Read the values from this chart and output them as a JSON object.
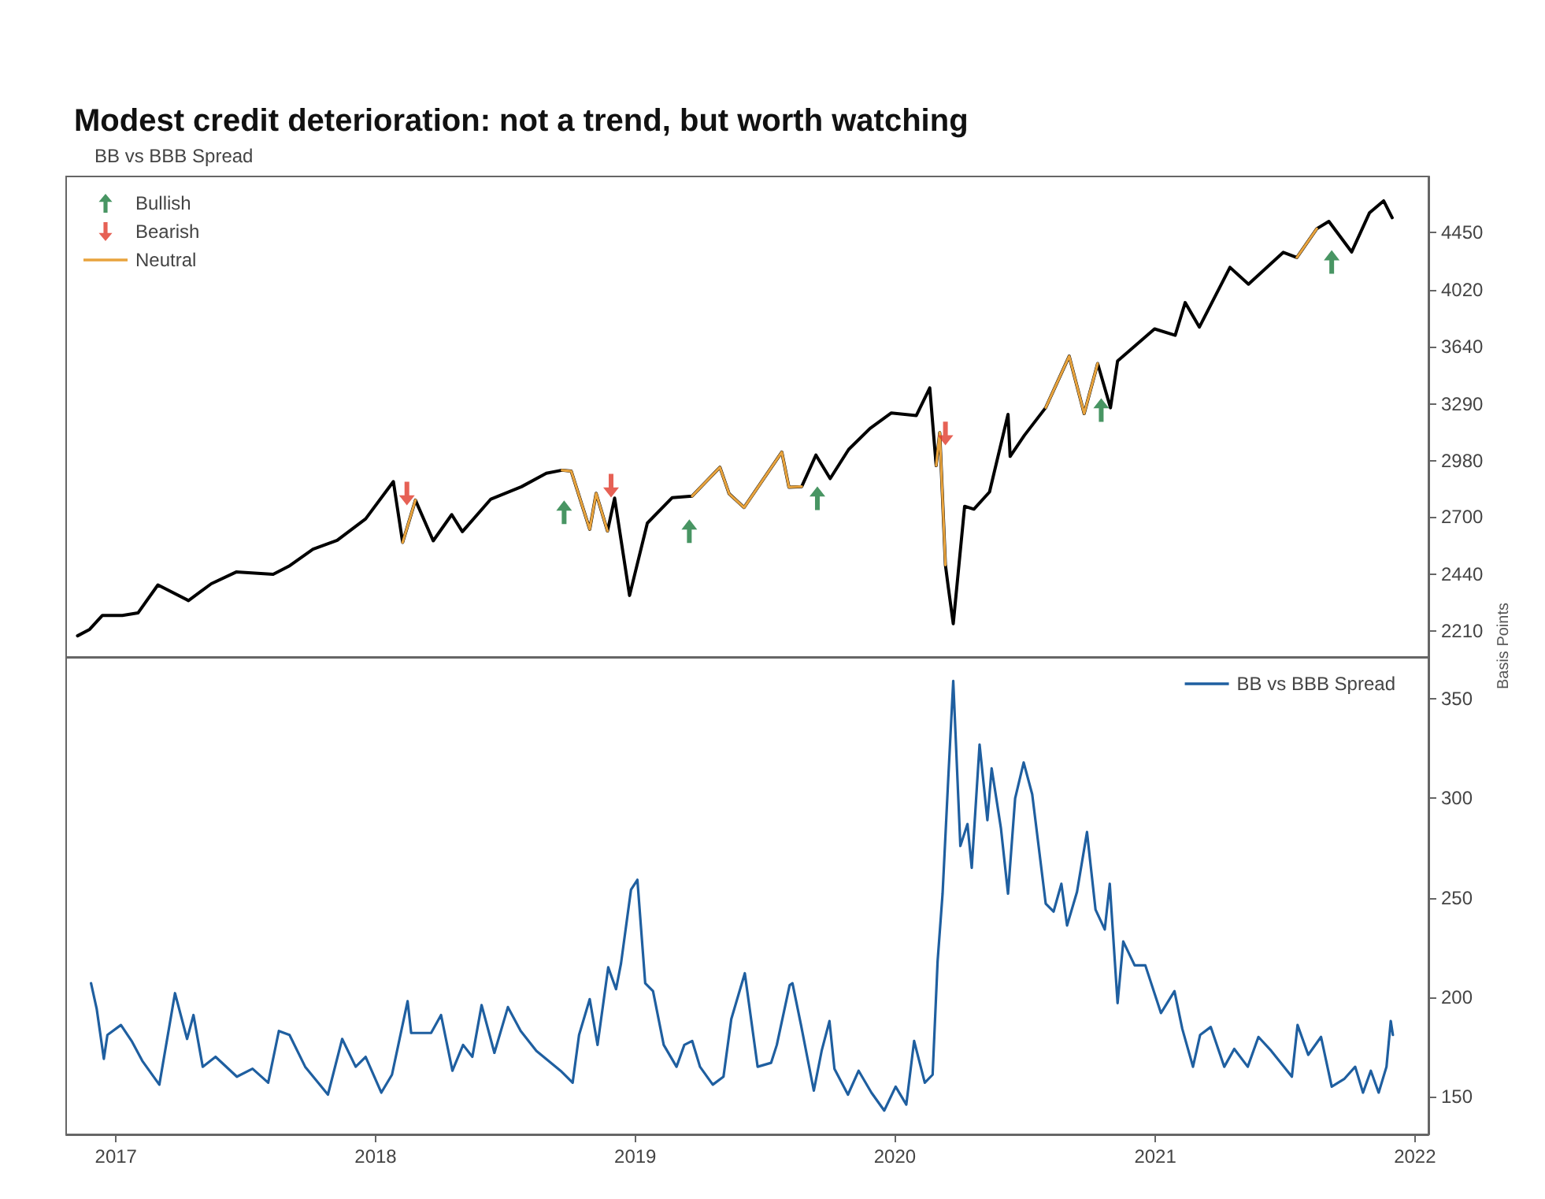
{
  "chart_data": [
    {
      "type": "line",
      "title": "Modest credit deterioration: not a trend, but worth watching",
      "subtitle": "BB vs BBB Spread",
      "x": [
        "2016-11-08",
        "2016-11-25",
        "2016-12-13",
        "2017-01-10",
        "2017-02-01",
        "2017-03-01",
        "2017-04-13",
        "2017-05-15",
        "2017-06-19",
        "2017-08-10",
        "2017-09-01",
        "2017-10-05",
        "2017-11-08",
        "2017-12-18",
        "2018-01-26",
        "2018-02-08",
        "2018-02-26",
        "2018-03-23",
        "2018-04-18",
        "2018-05-03",
        "2018-06-12",
        "2018-07-25",
        "2018-08-29",
        "2018-09-20",
        "2018-10-03",
        "2018-10-29",
        "2018-11-07",
        "2018-11-23",
        "2018-12-03",
        "2018-12-24",
        "2019-01-18",
        "2019-02-22",
        "2019-03-22",
        "2019-04-30",
        "2019-05-13",
        "2019-06-03",
        "2019-07-26",
        "2019-08-05",
        "2019-08-23",
        "2019-09-12",
        "2019-10-02",
        "2019-10-28",
        "2019-11-27",
        "2019-12-27",
        "2020-01-31",
        "2020-02-19",
        "2020-02-28",
        "2020-03-04",
        "2020-03-12",
        "2020-03-16",
        "2020-03-23",
        "2020-04-08",
        "2020-04-21",
        "2020-05-13",
        "2020-06-08",
        "2020-06-11",
        "2020-07-01",
        "2020-07-31",
        "2020-09-02",
        "2020-09-23",
        "2020-10-12",
        "2020-10-30",
        "2020-11-09",
        "2020-12-31",
        "2021-01-29",
        "2021-02-12",
        "2021-03-04",
        "2021-04-16",
        "2021-05-12",
        "2021-06-30",
        "2021-07-19",
        "2021-08-16",
        "2021-09-02",
        "2021-10-04",
        "2021-10-29",
        "2021-11-18",
        "2021-11-30"
      ],
      "series": [
        {
          "type": "line",
          "color": "#000000",
          "marker": "none",
          "values": [
            2190,
            2215,
            2270,
            2270,
            2280,
            2395,
            2330,
            2400,
            2450,
            2440,
            2475,
            2550,
            2590,
            2690,
            2872,
            2581,
            2780,
            2588,
            2710,
            2630,
            2785,
            2846,
            2914,
            2930,
            2925,
            2641,
            2813,
            2633,
            2790,
            2351,
            2670,
            2792,
            2800,
            2945,
            2811,
            2744,
            3025,
            2844,
            2847,
            3009,
            2887,
            3039,
            3153,
            3240,
            3225,
            3386,
            2954,
            3130,
            2480,
            2386,
            2237,
            2750,
            2736,
            2820,
            3232,
            3002,
            3115,
            3271,
            3580,
            3237,
            3534,
            3270,
            3550,
            3756,
            3714,
            3934,
            3768,
            4185,
            4063,
            4297,
            4258,
            4479,
            4537,
            4300,
            4605,
            4704,
            4567
          ]
        },
        {
          "type": "scatter",
          "name": "Bullish",
          "color": "#1a7a3c",
          "x": [
            "2018-09-23",
            "2019-03-18",
            "2019-09-14",
            "2020-10-17",
            "2021-09-06"
          ],
          "values": [
            2721,
            2632,
            2789,
            3257,
            4225
          ]
        },
        {
          "type": "scatter",
          "name": "Bearish",
          "color": "#e0392b",
          "x": [
            "2018-02-14",
            "2018-11-28",
            "2020-03-12"
          ],
          "values": [
            2812,
            2851,
            3125
          ]
        },
        {
          "type": "line",
          "name": "Neutral",
          "color": "#e8a33d",
          "marker": "none",
          "values": [
            null,
            null,
            null,
            null,
            null,
            null,
            null,
            null,
            null,
            null,
            null,
            null,
            null,
            null,
            null,
            2581,
            2780,
            null,
            null,
            null,
            null,
            null,
            null,
            2930,
            2925,
            2641,
            2813,
            2633,
            null,
            null,
            null,
            null,
            2800,
            2945,
            2811,
            2744,
            3025,
            2844,
            2847,
            null,
            null,
            null,
            null,
            null,
            null,
            null,
            2954,
            3130,
            2480,
            null,
            null,
            null,
            null,
            null,
            null,
            null,
            null,
            3271,
            3580,
            3237,
            3534,
            null,
            null,
            null,
            null,
            null,
            null,
            null,
            null,
            null,
            4258,
            4479,
            null,
            null,
            null,
            null,
            null
          ]
        }
      ],
      "log": "y",
      "xlim": [
        "2016-10-23",
        "2022-01-20"
      ],
      "xticks": [
        "2017",
        "2018",
        "2019",
        "2020",
        "2021",
        "2022"
      ],
      "ylim": [
        2110,
        4910
      ],
      "yticks": [
        2210,
        2440,
        2700,
        2980,
        3290,
        3640,
        4020,
        4450
      ],
      "tick_labels": "y",
      "grid": false,
      "legend": "top left"
    },
    {
      "type": "line",
      "ylabel": "Basis Points",
      "x": [
        "2016-11-27",
        "2016-12-05",
        "2016-12-15",
        "2016-12-20",
        "2017-01-08",
        "2017-01-23",
        "2017-02-07",
        "2017-03-03",
        "2017-03-25",
        "2017-04-11",
        "2017-04-20",
        "2017-05-03",
        "2017-05-21",
        "2017-06-20",
        "2017-07-12",
        "2017-08-03",
        "2017-08-18",
        "2017-09-02",
        "2017-09-24",
        "2017-10-26",
        "2017-11-15",
        "2017-12-04",
        "2017-12-18",
        "2018-01-09",
        "2018-01-24",
        "2018-02-15",
        "2018-02-20",
        "2018-03-20",
        "2018-04-03",
        "2018-04-19",
        "2018-05-04",
        "2018-05-17",
        "2018-05-30",
        "2018-06-17",
        "2018-07-06",
        "2018-07-24",
        "2018-08-15",
        "2018-09-18",
        "2018-10-05",
        "2018-10-14",
        "2018-10-29",
        "2018-11-09",
        "2018-11-24",
        "2018-12-05",
        "2018-12-12",
        "2018-12-26",
        "2019-01-04",
        "2019-01-15",
        "2019-01-26",
        "2019-02-10",
        "2019-02-28",
        "2019-03-11",
        "2019-03-22",
        "2019-04-02",
        "2019-04-20",
        "2019-05-05",
        "2019-05-16",
        "2019-06-04",
        "2019-06-22",
        "2019-07-11",
        "2019-07-19",
        "2019-08-06",
        "2019-08-10",
        "2019-08-22",
        "2019-09-09",
        "2019-09-20",
        "2019-10-01",
        "2019-10-08",
        "2019-10-27",
        "2019-11-11",
        "2019-11-29",
        "2019-12-17",
        "2020-01-02",
        "2020-01-17",
        "2020-01-28",
        "2020-02-12",
        "2020-02-23",
        "2020-03-01",
        "2020-03-08",
        "2020-03-16",
        "2020-03-23",
        "2020-04-02",
        "2020-04-12",
        "2020-04-18",
        "2020-04-29",
        "2020-05-10",
        "2020-05-16",
        "2020-05-29",
        "2020-06-08",
        "2020-06-18",
        "2020-06-30",
        "2020-07-12",
        "2020-07-31",
        "2020-08-11",
        "2020-08-22",
        "2020-08-30",
        "2020-09-13",
        "2020-09-27",
        "2020-10-09",
        "2020-10-22",
        "2020-10-29",
        "2020-11-09",
        "2020-11-17",
        "2020-12-03",
        "2020-12-18",
        "2021-01-09",
        "2021-01-28",
        "2021-02-08",
        "2021-02-23",
        "2021-03-05",
        "2021-03-20",
        "2021-04-08",
        "2021-04-22",
        "2021-05-11",
        "2021-05-26",
        "2021-06-13",
        "2021-07-01",
        "2021-07-12",
        "2021-07-20",
        "2021-08-04",
        "2021-08-22",
        "2021-09-06",
        "2021-09-24",
        "2021-10-09",
        "2021-10-20",
        "2021-10-31",
        "2021-11-11",
        "2021-11-22",
        "2021-11-28",
        "2021-12-01"
      ],
      "series": [
        {
          "type": "line",
          "name": "BB vs BBB Spread",
          "color": "#1f5fa0",
          "marker": "none",
          "values": [
            207,
            194,
            169,
            181,
            186,
            178,
            168,
            156,
            202,
            179,
            191,
            165,
            170,
            160,
            164,
            157,
            183,
            181,
            165,
            151,
            179,
            165,
            170,
            152,
            161,
            198,
            182,
            182,
            191,
            163,
            176,
            170,
            196,
            172,
            195,
            183,
            173,
            163,
            157,
            181,
            199,
            176,
            215,
            204,
            217,
            254,
            259,
            207,
            203,
            176,
            165,
            176,
            178,
            165,
            156,
            160,
            189,
            212,
            165,
            167,
            176,
            206,
            207,
            186,
            153,
            173,
            188,
            164,
            151,
            163,
            152,
            143,
            155,
            146,
            178,
            157,
            161,
            218,
            252,
            310,
            359,
            276,
            287,
            265,
            327,
            289,
            315,
            285,
            252,
            300,
            318,
            302,
            247,
            243,
            257,
            236,
            253,
            283,
            244,
            234,
            257,
            197,
            228,
            216,
            216,
            192,
            203,
            184,
            165,
            181,
            185,
            165,
            174,
            165,
            180,
            173,
            165,
            160,
            186,
            171,
            180,
            155,
            159,
            165,
            152,
            163,
            152,
            165,
            188,
            181
          ]
        }
      ],
      "xlim": [
        "2016-10-23",
        "2022-01-20"
      ],
      "xticks": [
        "2017",
        "2018",
        "2019",
        "2020",
        "2021",
        "2022"
      ],
      "ylim": [
        131,
        371
      ],
      "yticks": [
        150,
        200,
        250,
        300,
        350
      ],
      "grid": false,
      "legend": "top right"
    }
  ]
}
